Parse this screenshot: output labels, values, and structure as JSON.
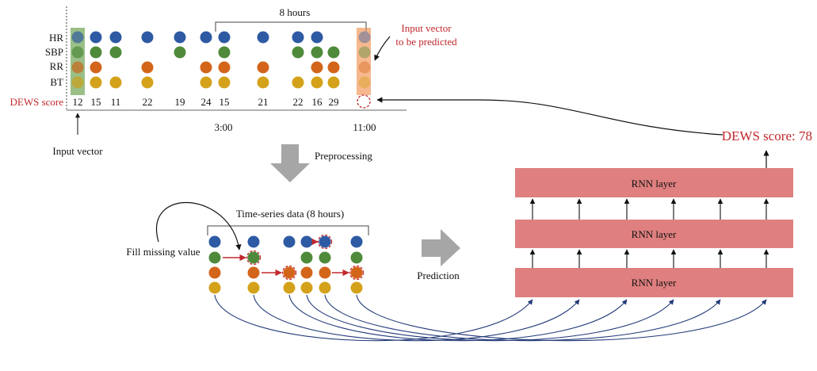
{
  "row_labels": [
    "HR",
    "SBP",
    "RR",
    "BT"
  ],
  "dews_label": "DEWS score",
  "dews_scores": [
    "12",
    "15",
    "11",
    "22",
    "19",
    "24",
    "15",
    "21",
    "22",
    "16",
    "29"
  ],
  "bracket_label": "8 hours",
  "time_label_3": "3:00",
  "time_label_11": "11:00",
  "input_vector_label": "Input vector",
  "predict_label_line1": "Input vector",
  "predict_label_line2": "to be predicted",
  "preprocessing_label": "Preprocessing",
  "timeseries_label": "Time-series data (8 hours)",
  "fill_missing_label": "Fill missing value",
  "prediction_label": "Prediction",
  "rnn_layers": [
    "RNN layer",
    "RNN layer",
    "RNN layer"
  ],
  "output_label": "DEWS score: 78",
  "colors": {
    "hr": "#2e5aa4",
    "sbp": "#4e8a3a",
    "rr": "#d3651b",
    "bt": "#d4a21a",
    "rnn": "#df7f7f",
    "highlight_green": "#8fb87a",
    "highlight_orange": "#f6b98e",
    "arrow_gray": "#a6a6a6",
    "curve_blue": "#243b7a",
    "red_text": "#c0282d"
  }
}
